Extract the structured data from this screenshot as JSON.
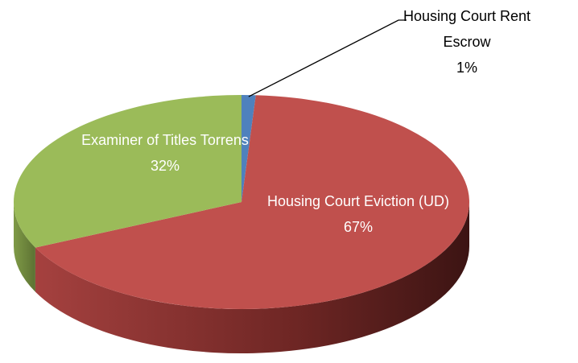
{
  "chart_data": {
    "type": "pie3d",
    "categories": [
      "Housing Court Rent Escrow",
      "Housing Court Eviction (UD)",
      "Examiner of Titles Torrens"
    ],
    "values": [
      1,
      67,
      32
    ],
    "value_labels": [
      "1%",
      "67%",
      "32%"
    ],
    "colors": [
      "#4f81bd",
      "#c0504d",
      "#9bbb59"
    ]
  }
}
